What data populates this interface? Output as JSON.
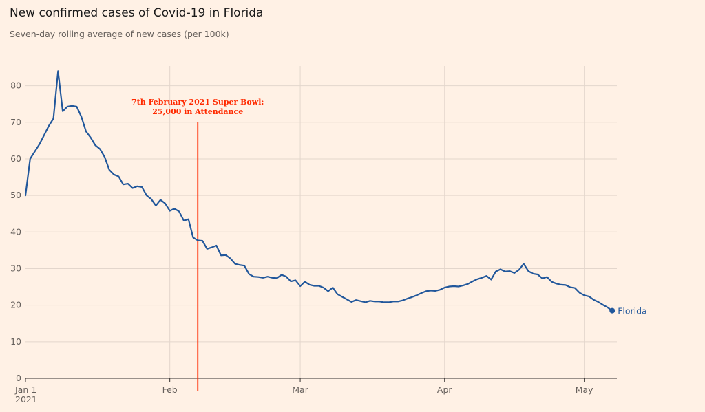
{
  "title": "New confirmed cases of Covid-19 in Florida",
  "subtitle": "Seven-day rolling average of new cases (per 100k)",
  "colors": {
    "line": "#21579b",
    "annotation": "#ff2a00",
    "grid": "#e3d6cc",
    "axis": "#33302e",
    "tick_text": "#66605c"
  },
  "chart_data": {
    "type": "line",
    "title": "New confirmed cases of Covid-19 in Florida",
    "subtitle": "Seven-day rolling average of new cases (per 100k)",
    "xlabel": "",
    "ylabel": "",
    "ylim": [
      0,
      85
    ],
    "yticks": [
      0,
      10,
      20,
      30,
      40,
      50,
      60,
      70,
      80
    ],
    "grid": true,
    "x_start": "2021-01-01",
    "x_end": "2021-05-08",
    "xticks": [
      {
        "date": "2021-01-01",
        "label": "Jan 1",
        "sublabel": "2021"
      },
      {
        "date": "2021-02-01",
        "label": "Feb",
        "sublabel": ""
      },
      {
        "date": "2021-03-01",
        "label": "Mar",
        "sublabel": ""
      },
      {
        "date": "2021-04-01",
        "label": "Apr",
        "sublabel": ""
      },
      {
        "date": "2021-05-01",
        "label": "May",
        "sublabel": ""
      }
    ],
    "series": [
      {
        "name": "Florida",
        "start_date": "2021-01-01",
        "values": [
          50.0,
          60.0,
          62.0,
          64.0,
          66.5,
          69.0,
          71.0,
          84.0,
          73.0,
          74.3,
          74.5,
          74.3,
          71.5,
          67.5,
          65.8,
          63.7,
          62.7,
          60.5,
          57.0,
          55.7,
          55.2,
          53.0,
          53.2,
          52.0,
          52.5,
          52.3,
          50.0,
          49.0,
          47.2,
          48.8,
          47.8,
          45.8,
          46.4,
          45.6,
          43.1,
          43.5,
          38.5,
          37.7,
          37.6,
          35.4,
          35.8,
          36.3,
          33.6,
          33.7,
          32.8,
          31.3,
          31.0,
          30.8,
          28.5,
          27.8,
          27.7,
          27.5,
          27.8,
          27.5,
          27.4,
          28.3,
          27.8,
          26.5,
          26.8,
          25.2,
          26.4,
          25.6,
          25.3,
          25.3,
          24.8,
          23.8,
          24.8,
          23.0,
          22.3,
          21.6,
          20.9,
          21.4,
          21.1,
          20.8,
          21.2,
          21.0,
          21.0,
          20.8,
          20.8,
          21.0,
          21.0,
          21.3,
          21.8,
          22.2,
          22.7,
          23.3,
          23.8,
          24.0,
          23.9,
          24.2,
          24.8,
          25.1,
          25.2,
          25.1,
          25.4,
          25.8,
          26.5,
          27.1,
          27.5,
          28.0,
          27.0,
          29.2,
          29.8,
          29.2,
          29.3,
          28.8,
          29.7,
          31.3,
          29.3,
          28.6,
          28.4,
          27.3,
          27.7,
          26.4,
          25.9,
          25.6,
          25.5,
          24.9,
          24.7,
          23.4,
          22.7,
          22.4,
          21.5,
          20.9,
          20.1,
          19.4,
          18.5
        ]
      }
    ],
    "end_label": "Florida",
    "annotations": [
      {
        "date": "2021-02-07",
        "text_line1": "7th February 2021 Super Bowl:",
        "text_line2": "25,000 in Attendance",
        "y_top": 70
      }
    ]
  }
}
